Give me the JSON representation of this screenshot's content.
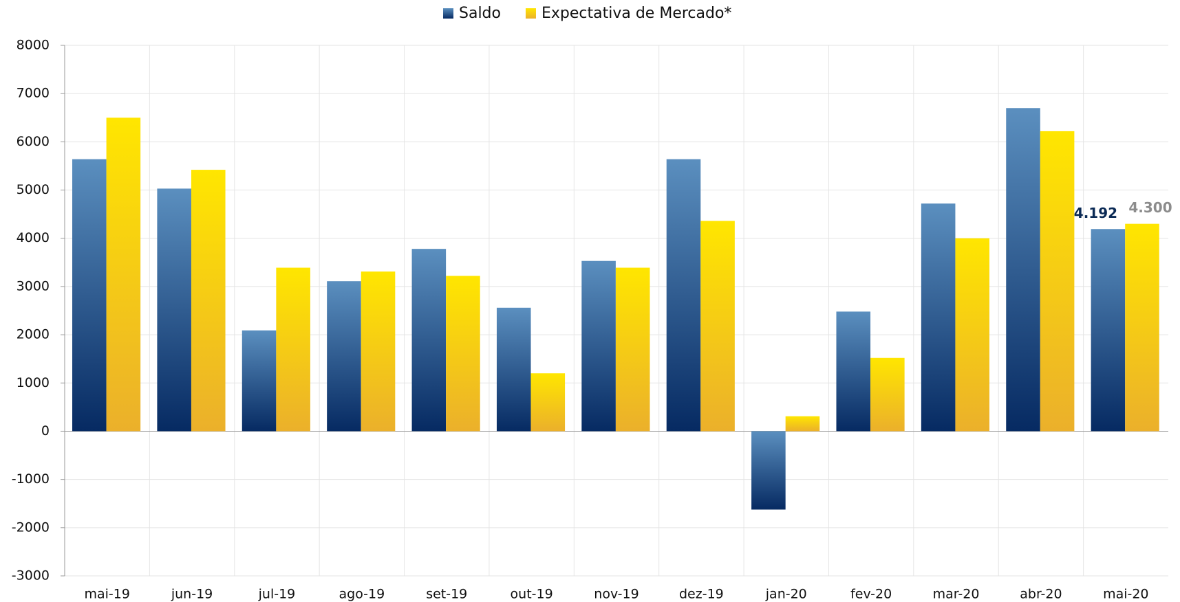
{
  "chart_data": {
    "type": "bar",
    "categories": [
      "mai-19",
      "jun-19",
      "jul-19",
      "ago-19",
      "set-19",
      "out-19",
      "nov-19",
      "dez-19",
      "jan-20",
      "fev-20",
      "mar-20",
      "abr-20",
      "mai-20"
    ],
    "series": [
      {
        "name": "Saldo",
        "color": "#5b8fbf",
        "values": [
          5640,
          5030,
          2090,
          3110,
          3780,
          2560,
          3530,
          5640,
          -1625,
          2480,
          4720,
          6700,
          4192
        ],
        "value_labels": [
          null,
          null,
          null,
          null,
          null,
          null,
          null,
          null,
          null,
          null,
          null,
          null,
          "4.192"
        ]
      },
      {
        "name": "Expectativa de Mercado*",
        "color": "#ffe600",
        "values": [
          6500,
          5420,
          3390,
          3310,
          3220,
          1200,
          3390,
          4360,
          310,
          1520,
          4000,
          6220,
          4300
        ],
        "value_labels": [
          null,
          null,
          null,
          null,
          null,
          null,
          null,
          null,
          null,
          null,
          null,
          null,
          "4.300"
        ]
      }
    ],
    "ylim": [
      -3000,
      8000
    ],
    "yticks": [
      -3000,
      -2000,
      -1000,
      0,
      1000,
      2000,
      3000,
      4000,
      5000,
      6000,
      7000,
      8000
    ],
    "grid": true,
    "legend": "top"
  }
}
